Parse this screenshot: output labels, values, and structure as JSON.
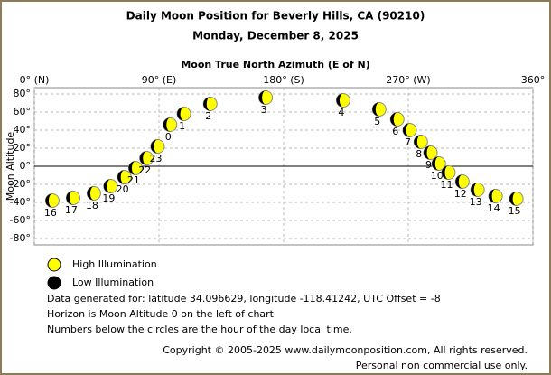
{
  "chart_data": {
    "type": "scatter",
    "title": "Daily Moon Position for Beverly Hills, CA (90210)",
    "subtitle": "Monday, December 8, 2025",
    "x_label": "Moon True North Azimuth (E of N)",
    "y_label": "Moon Altitude",
    "xlim": [
      0,
      360
    ],
    "xticks": [
      {
        "value": 0,
        "label": "0° (N)"
      },
      {
        "value": 90,
        "label": "90° (E)"
      },
      {
        "value": 180,
        "label": "180° (S)"
      },
      {
        "value": 270,
        "label": "270° (W)"
      },
      {
        "value": 360,
        "label": "360°"
      }
    ],
    "ylim": [
      -80,
      80
    ],
    "yticks": [
      {
        "value": 80,
        "label": "80°"
      },
      {
        "value": 60,
        "label": "60°"
      },
      {
        "value": 40,
        "label": "40°"
      },
      {
        "value": 20,
        "label": "20°"
      },
      {
        "value": 0,
        "label": "0°"
      },
      {
        "value": -20,
        "label": "-20°"
      },
      {
        "value": -40,
        "label": "-40°"
      },
      {
        "value": -60,
        "label": "-60°"
      },
      {
        "value": -80,
        "label": "-80°"
      }
    ],
    "grid": true,
    "series": [
      {
        "name": "High Illumination",
        "color": "#ffff00",
        "x": [
          13,
          28,
          43,
          55,
          65,
          73,
          81,
          89,
          98,
          108,
          127,
          167,
          223,
          249,
          262,
          271,
          279,
          286,
          292,
          299,
          309,
          320,
          333,
          348
        ],
        "values": [
          -38,
          -35,
          -30,
          -22,
          -12,
          -2,
          9,
          22,
          46,
          58,
          69,
          76,
          73,
          63,
          52,
          40,
          27,
          15,
          3,
          -7,
          -17,
          -26,
          -33,
          -36
        ],
        "labels": [
          "16",
          "17",
          "18",
          "19",
          "20",
          "21",
          "22",
          "23",
          "0",
          "1",
          "2",
          "3",
          "4",
          "5",
          "6",
          "7",
          "8",
          "9",
          "10",
          "11",
          "12",
          "13",
          "14",
          "15"
        ]
      },
      {
        "name": "Low Illumination",
        "color": "#000000",
        "x": [],
        "values": [],
        "labels": []
      }
    ],
    "notes": [
      "Data generated for: latitude 34.096629, longitude -118.41242, UTC Offset = -8",
      "Horizon is Moon Altitude 0 on the left of chart",
      "Numbers below the circles are the hour of the day local time."
    ],
    "copyright": [
      "Copyright © 2005-2025 www.dailymoonposition.com, All rights reserved.",
      "Personal non commercial use only."
    ]
  }
}
